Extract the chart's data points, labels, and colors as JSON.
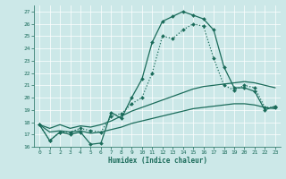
{
  "xlabel": "Humidex (Indice chaleur)",
  "xlim": [
    -0.5,
    23.5
  ],
  "ylim": [
    16,
    27.5
  ],
  "yticks": [
    16,
    17,
    18,
    19,
    20,
    21,
    22,
    23,
    24,
    25,
    26,
    27
  ],
  "xticks": [
    0,
    1,
    2,
    3,
    4,
    5,
    6,
    7,
    8,
    9,
    10,
    11,
    12,
    13,
    14,
    15,
    16,
    17,
    18,
    19,
    20,
    21,
    22,
    23
  ],
  "bg_color": "#cce8e8",
  "line_color": "#1a6b5a",
  "series1": [
    17.8,
    16.5,
    17.2,
    17.0,
    17.2,
    16.2,
    16.3,
    18.8,
    18.3,
    20.0,
    21.5,
    24.5,
    26.2,
    26.6,
    27.0,
    26.7,
    26.4,
    25.5,
    22.5,
    20.8,
    20.8,
    20.5,
    19.0,
    19.3
  ],
  "series2": [
    17.8,
    16.5,
    17.2,
    17.2,
    17.5,
    17.3,
    17.2,
    18.5,
    18.7,
    19.5,
    20.0,
    22.0,
    25.0,
    24.8,
    25.5,
    26.0,
    25.8,
    23.2,
    21.0,
    20.6,
    21.0,
    20.8,
    19.2,
    19.2
  ],
  "series3": [
    17.8,
    17.5,
    17.8,
    17.5,
    17.7,
    17.6,
    17.8,
    18.1,
    18.5,
    18.9,
    19.2,
    19.5,
    19.8,
    20.1,
    20.4,
    20.7,
    20.9,
    21.0,
    21.1,
    21.2,
    21.3,
    21.2,
    21.0,
    20.8
  ],
  "series4": [
    17.8,
    17.2,
    17.3,
    17.2,
    17.3,
    17.1,
    17.2,
    17.4,
    17.6,
    17.9,
    18.1,
    18.3,
    18.5,
    18.7,
    18.9,
    19.1,
    19.2,
    19.3,
    19.4,
    19.5,
    19.5,
    19.4,
    19.2,
    19.1
  ]
}
